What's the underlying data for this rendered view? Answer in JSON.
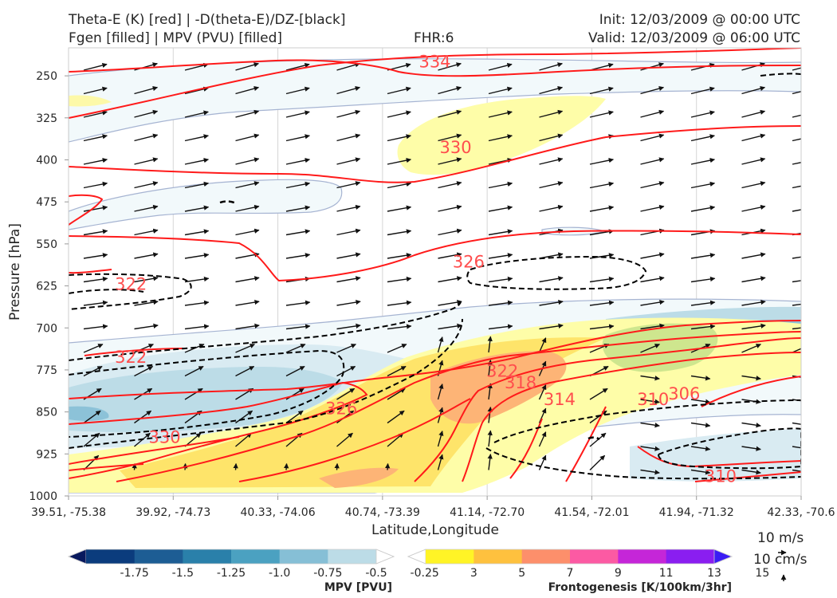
{
  "header": {
    "title_left_1": "Theta-E (K) [red] | -D(theta-E)/DZ-[black]",
    "title_left_2": "Fgen [filled] | MPV (PVU) [filled]",
    "fhr": "FHR:6",
    "init": "Init: 12/03/2009 @ 00:00 UTC",
    "valid": "Valid: 12/03/2009 @ 06:00 UTC"
  },
  "chart_data": {
    "type": "cross-section",
    "xlabel": "Latitude,Longitude",
    "ylabel": "Pressure [hPa]",
    "x_ticks": [
      "39.51, -75.38",
      "39.92, -74.73",
      "40.33, -74.06",
      "40.74, -73.39",
      "41.14, -72.70",
      "41.54, -72.01",
      "41.94, -71.32",
      "42.33, -70.6"
    ],
    "y_ticks": [
      250,
      325,
      400,
      475,
      550,
      625,
      700,
      775,
      850,
      925,
      1000
    ],
    "ylim": [
      1000,
      200
    ],
    "grid": true,
    "theta_e_contour_labels": [
      {
        "value": "334",
        "lat_lon": "40.92, -73.10",
        "p": 235
      },
      {
        "value": "330",
        "lat_lon": "41.00, -72.95",
        "p": 388
      },
      {
        "value": "326",
        "lat_lon": "41.05, -72.85",
        "p": 592
      },
      {
        "value": "322",
        "lat_lon": "39.75, -75.00",
        "p": 632
      },
      {
        "value": "322",
        "lat_lon": "39.75, -75.00",
        "p": 762
      },
      {
        "value": "322",
        "lat_lon": "41.18, -72.62",
        "p": 787
      },
      {
        "value": "318",
        "lat_lon": "41.25, -72.50",
        "p": 808
      },
      {
        "value": "326",
        "lat_lon": "40.56, -73.70",
        "p": 854
      },
      {
        "value": "330",
        "lat_lon": "39.88, -74.80",
        "p": 905
      },
      {
        "value": "314",
        "lat_lon": "41.40, -72.25",
        "p": 838
      },
      {
        "value": "310",
        "lat_lon": "41.76, -71.62",
        "p": 838
      },
      {
        "value": "306",
        "lat_lon": "41.88, -71.42",
        "p": 828
      },
      {
        "value": "310",
        "lat_lon": "42.02, -71.17",
        "p": 975
      }
    ],
    "mpv_colorbar": {
      "label": "MPV [PVU]",
      "levels": [
        "-1.75",
        "-1.5",
        "-1.25",
        "-1.0",
        "-0.75",
        "-0.5",
        "-0.25"
      ],
      "colors": [
        "#08195e",
        "#0b3c7d",
        "#1d5d94",
        "#2a80aa",
        "#4ba1c1",
        "#86bfd6",
        "#bcdce7",
        "#ffffff"
      ]
    },
    "fgen_colorbar": {
      "label": "Frontogenesis [K/100km/3hr]",
      "levels": [
        "3",
        "5",
        "7",
        "9",
        "11",
        "13",
        "15"
      ],
      "colors": [
        "#ffffff",
        "#fff426",
        "#fec13e",
        "#fd8f6b",
        "#fc5aa3",
        "#c526d8",
        "#8a1ef0",
        "#3a1cf4"
      ]
    },
    "vector_key": {
      "horizontal": "10 m/s",
      "vertical": "10 cm/s"
    }
  }
}
